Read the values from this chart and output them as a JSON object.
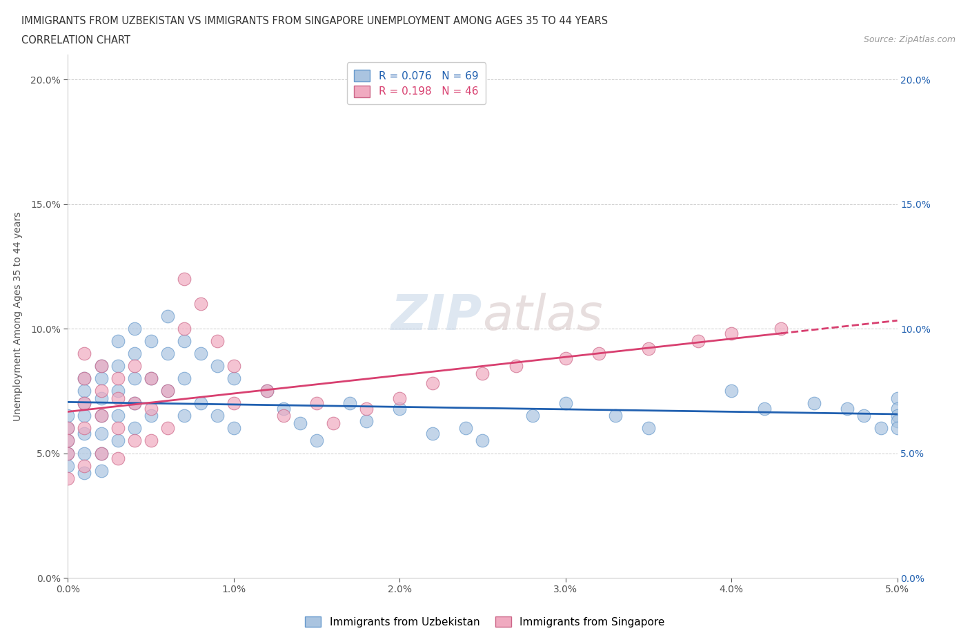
{
  "title_line1": "IMMIGRANTS FROM UZBEKISTAN VS IMMIGRANTS FROM SINGAPORE UNEMPLOYMENT AMONG AGES 35 TO 44 YEARS",
  "title_line2": "CORRELATION CHART",
  "source_text": "Source: ZipAtlas.com",
  "ylabel": "Unemployment Among Ages 35 to 44 years",
  "xlim": [
    0.0,
    0.05
  ],
  "ylim": [
    0.0,
    0.21
  ],
  "xticks": [
    0.0,
    0.01,
    0.02,
    0.03,
    0.04,
    0.05
  ],
  "yticks": [
    0.0,
    0.05,
    0.1,
    0.15,
    0.2
  ],
  "color_uzbekistan": "#aac4e0",
  "color_singapore": "#f0aac0",
  "line_color_uzbekistan": "#2060b0",
  "line_color_singapore": "#d84070",
  "R_uzbekistan": 0.076,
  "N_uzbekistan": 69,
  "R_singapore": 0.198,
  "N_singapore": 46,
  "watermark": "ZIPatlas",
  "legend_label_uzbekistan": "Immigrants from Uzbekistan",
  "legend_label_singapore": "Immigrants from Singapore",
  "uzbekistan_x": [
    0.0,
    0.0,
    0.0,
    0.0,
    0.0,
    0.001,
    0.001,
    0.001,
    0.001,
    0.001,
    0.001,
    0.001,
    0.002,
    0.002,
    0.002,
    0.002,
    0.002,
    0.002,
    0.002,
    0.003,
    0.003,
    0.003,
    0.003,
    0.003,
    0.004,
    0.004,
    0.004,
    0.004,
    0.004,
    0.005,
    0.005,
    0.005,
    0.006,
    0.006,
    0.006,
    0.007,
    0.007,
    0.007,
    0.008,
    0.008,
    0.009,
    0.009,
    0.01,
    0.01,
    0.012,
    0.013,
    0.014,
    0.015,
    0.017,
    0.018,
    0.02,
    0.022,
    0.024,
    0.025,
    0.028,
    0.03,
    0.033,
    0.035,
    0.04,
    0.042,
    0.045,
    0.047,
    0.048,
    0.049,
    0.05,
    0.05,
    0.05,
    0.05,
    0.05
  ],
  "uzbekistan_y": [
    0.065,
    0.06,
    0.055,
    0.05,
    0.045,
    0.08,
    0.075,
    0.07,
    0.065,
    0.058,
    0.05,
    0.042,
    0.085,
    0.08,
    0.072,
    0.065,
    0.058,
    0.05,
    0.043,
    0.095,
    0.085,
    0.075,
    0.065,
    0.055,
    0.1,
    0.09,
    0.08,
    0.07,
    0.06,
    0.095,
    0.08,
    0.065,
    0.105,
    0.09,
    0.075,
    0.095,
    0.08,
    0.065,
    0.09,
    0.07,
    0.085,
    0.065,
    0.08,
    0.06,
    0.075,
    0.068,
    0.062,
    0.055,
    0.07,
    0.063,
    0.068,
    0.058,
    0.06,
    0.055,
    0.065,
    0.07,
    0.065,
    0.06,
    0.075,
    0.068,
    0.07,
    0.068,
    0.065,
    0.06,
    0.072,
    0.068,
    0.065,
    0.063,
    0.06
  ],
  "singapore_x": [
    0.0,
    0.0,
    0.0,
    0.0,
    0.001,
    0.001,
    0.001,
    0.001,
    0.001,
    0.002,
    0.002,
    0.002,
    0.002,
    0.003,
    0.003,
    0.003,
    0.003,
    0.004,
    0.004,
    0.004,
    0.005,
    0.005,
    0.005,
    0.006,
    0.006,
    0.007,
    0.007,
    0.008,
    0.009,
    0.01,
    0.01,
    0.012,
    0.013,
    0.015,
    0.016,
    0.018,
    0.02,
    0.022,
    0.025,
    0.027,
    0.03,
    0.032,
    0.035,
    0.038,
    0.04,
    0.043
  ],
  "singapore_y": [
    0.06,
    0.055,
    0.05,
    0.04,
    0.09,
    0.08,
    0.07,
    0.06,
    0.045,
    0.085,
    0.075,
    0.065,
    0.05,
    0.08,
    0.072,
    0.06,
    0.048,
    0.085,
    0.07,
    0.055,
    0.08,
    0.068,
    0.055,
    0.075,
    0.06,
    0.12,
    0.1,
    0.11,
    0.095,
    0.085,
    0.07,
    0.075,
    0.065,
    0.07,
    0.062,
    0.068,
    0.072,
    0.078,
    0.082,
    0.085,
    0.088,
    0.09,
    0.092,
    0.095,
    0.098,
    0.1
  ]
}
